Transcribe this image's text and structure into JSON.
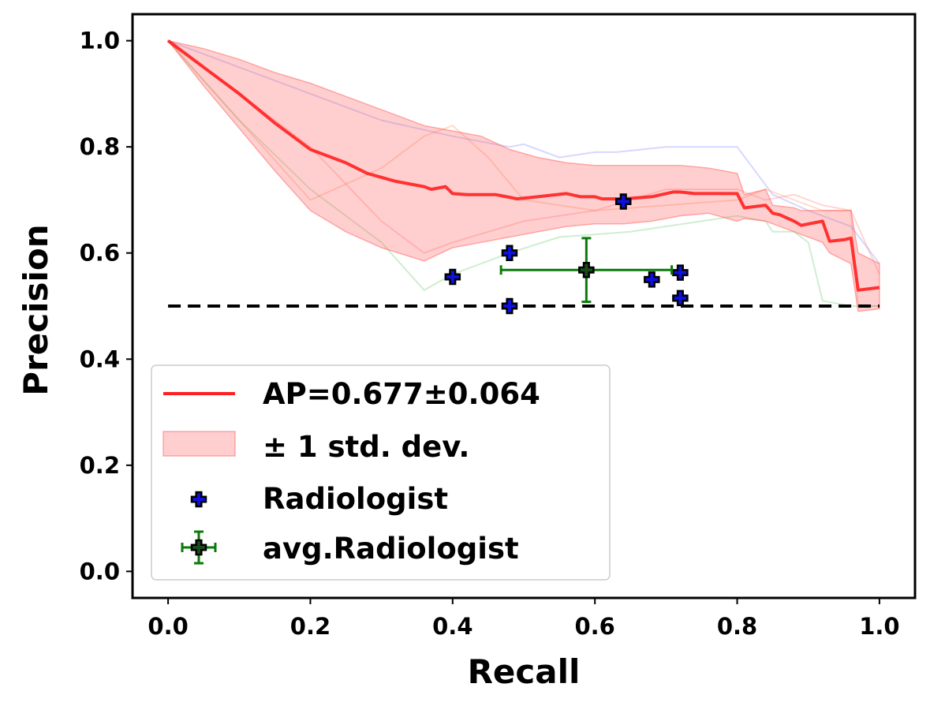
{
  "chart_data": {
    "type": "line",
    "title": "",
    "xlabel": "Recall",
    "ylabel": "Precision",
    "xlim": [
      -0.05,
      1.05
    ],
    "ylim": [
      -0.05,
      1.05
    ],
    "xticks": [
      "0.0",
      "0.2",
      "0.4",
      "0.6",
      "0.8",
      "1.0"
    ],
    "yticks": [
      "0.0",
      "0.2",
      "0.4",
      "0.6",
      "0.8",
      "1.0"
    ],
    "legend_position": "lower-left",
    "mean_curve": {
      "name": "AP=0.677±0.064",
      "color": "#ff2020",
      "x": [
        0.0,
        0.05,
        0.1,
        0.15,
        0.2,
        0.25,
        0.28,
        0.32,
        0.36,
        0.37,
        0.39,
        0.4,
        0.42,
        0.46,
        0.48,
        0.49,
        0.52,
        0.56,
        0.58,
        0.6,
        0.61,
        0.64,
        0.68,
        0.71,
        0.72,
        0.74,
        0.77,
        0.8,
        0.81,
        0.84,
        0.85,
        0.86,
        0.88,
        0.89,
        0.92,
        0.93,
        0.95,
        0.96,
        0.97,
        1.0
      ],
      "y": [
        1.0,
        0.95,
        0.9,
        0.845,
        0.795,
        0.77,
        0.75,
        0.735,
        0.725,
        0.72,
        0.725,
        0.712,
        0.71,
        0.71,
        0.705,
        0.702,
        0.706,
        0.712,
        0.706,
        0.706,
        0.702,
        0.702,
        0.706,
        0.715,
        0.715,
        0.712,
        0.712,
        0.712,
        0.685,
        0.69,
        0.675,
        0.672,
        0.66,
        0.652,
        0.66,
        0.622,
        0.625,
        0.628,
        0.53,
        0.535
      ]
    },
    "std_band": {
      "name": "± 1 std. dev.",
      "color": "#ff6060",
      "x": [
        0.0,
        0.05,
        0.1,
        0.15,
        0.2,
        0.25,
        0.3,
        0.36,
        0.4,
        0.44,
        0.48,
        0.52,
        0.56,
        0.6,
        0.64,
        0.68,
        0.72,
        0.76,
        0.8,
        0.81,
        0.84,
        0.85,
        0.88,
        0.89,
        0.92,
        0.93,
        0.96,
        0.97,
        1.0
      ],
      "upper": [
        1.0,
        0.985,
        0.965,
        0.94,
        0.92,
        0.895,
        0.87,
        0.84,
        0.83,
        0.82,
        0.795,
        0.78,
        0.77,
        0.765,
        0.765,
        0.765,
        0.765,
        0.76,
        0.75,
        0.71,
        0.72,
        0.69,
        0.685,
        0.68,
        0.68,
        0.68,
        0.68,
        0.6,
        0.58
      ],
      "lower": [
        1.0,
        0.915,
        0.835,
        0.755,
        0.68,
        0.64,
        0.61,
        0.585,
        0.61,
        0.62,
        0.63,
        0.64,
        0.65,
        0.655,
        0.655,
        0.66,
        0.67,
        0.675,
        0.66,
        0.665,
        0.66,
        0.655,
        0.64,
        0.635,
        0.62,
        0.6,
        0.58,
        0.49,
        0.495
      ]
    },
    "fold_curves": [
      {
        "color": "#8c8cff",
        "x": [
          0.0,
          0.1,
          0.2,
          0.3,
          0.4,
          0.48,
          0.5,
          0.55,
          0.6,
          0.63,
          0.7,
          0.75,
          0.8,
          0.85,
          0.9,
          0.96,
          1.0
        ],
        "y": [
          1.0,
          0.95,
          0.9,
          0.85,
          0.82,
          0.8,
          0.805,
          0.78,
          0.79,
          0.79,
          0.8,
          0.8,
          0.8,
          0.71,
          0.68,
          0.65,
          0.58
        ]
      },
      {
        "color": "#ff9966",
        "x": [
          0.0,
          0.1,
          0.2,
          0.3,
          0.36,
          0.4,
          0.45,
          0.5,
          0.6,
          0.7,
          0.8,
          0.84,
          0.88,
          0.92,
          0.96,
          0.97,
          1.0
        ],
        "y": [
          1.0,
          0.85,
          0.7,
          0.76,
          0.82,
          0.84,
          0.78,
          0.7,
          0.68,
          0.69,
          0.7,
          0.72,
          0.7,
          0.68,
          0.68,
          0.5,
          0.5
        ]
      },
      {
        "color": "#77cc77",
        "x": [
          0.0,
          0.1,
          0.2,
          0.3,
          0.36,
          0.4,
          0.48,
          0.55,
          0.65,
          0.75,
          0.8,
          0.84,
          0.85,
          0.88,
          0.9,
          0.92,
          0.96,
          1.0
        ],
        "y": [
          1.0,
          0.85,
          0.72,
          0.62,
          0.53,
          0.56,
          0.6,
          0.63,
          0.64,
          0.66,
          0.67,
          0.66,
          0.64,
          0.64,
          0.62,
          0.51,
          0.5,
          0.5
        ]
      },
      {
        "color": "#ff8888",
        "x": [
          0.0,
          0.1,
          0.2,
          0.3,
          0.36,
          0.4,
          0.5,
          0.6,
          0.65,
          0.7,
          0.8,
          0.84,
          0.88,
          0.92,
          0.96,
          1.0
        ],
        "y": [
          1.0,
          0.9,
          0.8,
          0.66,
          0.6,
          0.62,
          0.66,
          0.68,
          0.7,
          0.72,
          0.72,
          0.7,
          0.71,
          0.69,
          0.68,
          0.56
        ]
      }
    ],
    "baseline": {
      "y": 0.5,
      "x": [
        0.0,
        1.0
      ],
      "color": "#000000",
      "style": "dashed"
    },
    "radiologists": {
      "name": "Radiologist",
      "color": "#1010dd",
      "points": [
        {
          "x": 0.4,
          "y": 0.555
        },
        {
          "x": 0.48,
          "y": 0.6
        },
        {
          "x": 0.48,
          "y": 0.5
        },
        {
          "x": 0.64,
          "y": 0.697
        },
        {
          "x": 0.68,
          "y": 0.55
        },
        {
          "x": 0.72,
          "y": 0.563
        },
        {
          "x": 0.72,
          "y": 0.515
        }
      ]
    },
    "avg_radiologist": {
      "name": "avg.Radiologist",
      "color": "#0a7a0a",
      "x": 0.588,
      "y": 0.568,
      "xerr": 0.12,
      "yerr": 0.06
    }
  }
}
